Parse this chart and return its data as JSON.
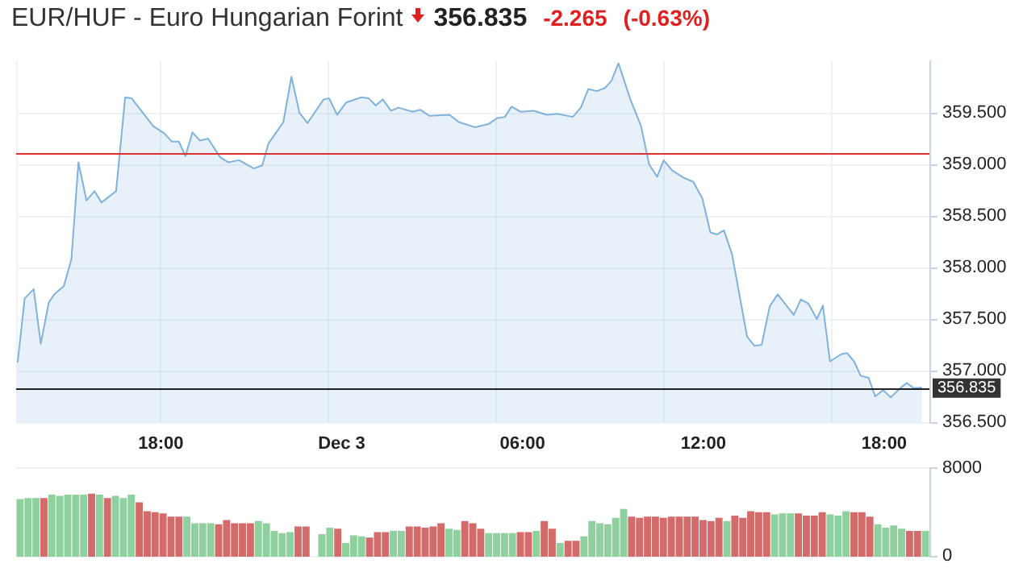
{
  "chart_data": [
    {
      "type": "area",
      "title": "EUR/HUF - Euro Hungarian Forint",
      "annotations": [
        "356.835",
        "-2.265",
        "(-0.63%)"
      ],
      "x": [
        "--12-02T13:15",
        "--12-02T13:29",
        "--12-02T13:47",
        "--12-02T14:01",
        "--12-02T14:17",
        "--12-02T14:28",
        "--12-02T14:47",
        "--12-02T15:02",
        "--12-02T15:16",
        "--12-02T15:32",
        "--12-02T15:48",
        "--12-02T16:02",
        "--12-02T16:31",
        "--12-02T16:49",
        "--12-02T17:02",
        "--12-02T17:45",
        "--12-02T18:07",
        "--12-02T18:22",
        "--12-02T18:36",
        "--12-02T18:49",
        "--12-02T19:03",
        "--12-02T19:18",
        "--12-02T19:34",
        "--12-02T19:58",
        "--12-02T20:14",
        "--12-02T20:36",
        "--12-02T21:05",
        "--12-02T21:22",
        "--12-02T21:34",
        "--12-02T22:04",
        "--12-02T22:20",
        "--12-02T22:36",
        "--12-02T22:52",
        "--12-02T23:24",
        "--12-02T23:35",
        "--12-02T23:51",
        "--12-03T00:09",
        "--12-03T00:39",
        "--12-03T00:54",
        "--12-03T01:08",
        "--12-03T01:22",
        "--12-03T01:38",
        "--12-03T01:53",
        "--12-03T02:22",
        "--12-03T02:36",
        "--12-03T02:55",
        "--12-03T03:35",
        "--12-03T03:53",
        "--12-03T04:25",
        "--12-03T04:52",
        "--12-03T05:10",
        "--12-03T05:25",
        "--12-03T05:38",
        "--12-03T05:56",
        "--12-03T06:22",
        "--12-03T06:49",
        "--12-03T07:10",
        "--12-03T07:40",
        "--12-03T07:56",
        "--12-03T08:11",
        "--12-03T08:28",
        "--12-03T08:44",
        "--12-03T08:57",
        "--12-03T09:11",
        "--12-03T09:34",
        "--12-03T09:56",
        "--12-03T10:12",
        "--12-03T10:28",
        "--12-03T10:41",
        "--12-03T10:58",
        "--12-03T11:21",
        "--12-03T11:40",
        "--12-03T11:58",
        "--12-03T12:14",
        "--12-03T12:27",
        "--12-03T12:41",
        "--12-03T12:57",
        "--12-03T13:27",
        "--12-03T13:42",
        "--12-03T13:56",
        "--12-03T14:12",
        "--12-03T14:28",
        "--12-03T15:00",
        "--12-03T15:14",
        "--12-03T15:29",
        "--12-03T15:46",
        "--12-03T15:58",
        "--12-03T16:12",
        "--12-03T16:35",
        "--12-03T16:46",
        "--12-03T17:00",
        "--12-03T17:13",
        "--12-03T17:29",
        "--12-03T17:42",
        "--12-03T17:58",
        "--12-03T18:13",
        "--12-03T18:32",
        "--12-03T18:45",
        "--12-03T18:59",
        "--12-03T19:15"
      ],
      "series": [
        {
          "color": "#7fb3de",
          "values": [
            357.08,
            357.7,
            357.79,
            357.26,
            357.66,
            357.74,
            357.82,
            358.08,
            359.02,
            358.65,
            358.74,
            358.63,
            358.74,
            359.65,
            359.64,
            359.37,
            359.3,
            359.22,
            359.22,
            359.08,
            359.31,
            359.23,
            359.25,
            359.07,
            359.02,
            359.04,
            358.96,
            358.99,
            359.2,
            359.41,
            359.85,
            359.5,
            359.4,
            359.63,
            359.64,
            359.48,
            359.6,
            359.65,
            359.64,
            359.57,
            359.63,
            359.52,
            359.55,
            359.51,
            359.53,
            359.47,
            359.48,
            359.41,
            359.36,
            359.39,
            359.45,
            359.46,
            359.56,
            359.51,
            359.52,
            359.48,
            359.49,
            359.46,
            359.55,
            359.73,
            359.71,
            359.74,
            359.81,
            359.98,
            359.64,
            359.37,
            359.0,
            358.88,
            359.04,
            358.94,
            358.87,
            358.83,
            358.67,
            358.34,
            358.32,
            358.36,
            358.13,
            357.33,
            357.24,
            357.25,
            357.62,
            357.74,
            357.54,
            357.69,
            357.65,
            357.5,
            357.63,
            357.09,
            357.16,
            357.17,
            357.09,
            356.95,
            356.93,
            356.75,
            356.81,
            356.74,
            356.83,
            356.88,
            356.83,
            356.835
          ]
        }
      ],
      "xlim": [
        "--12-02T13:12",
        "--12-03T19:30"
      ],
      "xticks": [
        {
          "value": "--12-02T18:00",
          "label": "18:00"
        },
        {
          "value": "--12-03T00:00",
          "label": "Dec 3"
        },
        {
          "value": "--12-03T06:00",
          "label": "06:00"
        },
        {
          "value": "--12-03T12:00",
          "label": "12:00"
        },
        {
          "value": "--12-03T18:00",
          "label": "18:00"
        }
      ],
      "ylim": [
        356.5,
        360.0
      ],
      "yticks": [
        {
          "value": 356.5,
          "label": "356.500"
        },
        {
          "value": 357,
          "label": "357.000"
        },
        {
          "value": 357.5,
          "label": "357.500"
        },
        {
          "value": 358,
          "label": "358.000"
        },
        {
          "value": 358.5,
          "label": "358.500"
        },
        {
          "value": 359,
          "label": "359.000"
        },
        {
          "value": 359.5,
          "label": "359.500"
        }
      ],
      "grid": true,
      "marker": "none",
      "ref_lines": [
        {
          "axis": "y",
          "value": 359.1,
          "color": "#e03030"
        },
        {
          "axis": "y",
          "value": 356.835,
          "label": "356.835",
          "color": "#222222"
        }
      ]
    },
    {
      "type": "bar",
      "categories": [
        null,
        null,
        null,
        null,
        null,
        null,
        null,
        null,
        null,
        null,
        null,
        null,
        null,
        null,
        null,
        null,
        null,
        null,
        null,
        null,
        null,
        null,
        null,
        null,
        null,
        null,
        null,
        null,
        null,
        null,
        null,
        null,
        null,
        null,
        null,
        null,
        null,
        null,
        null,
        null,
        null,
        null,
        null,
        null,
        null,
        null,
        null,
        null,
        null,
        null,
        null,
        null,
        null,
        null,
        null,
        null,
        null,
        null,
        null,
        null,
        null,
        null,
        null,
        null,
        null,
        null,
        null,
        null,
        null,
        null,
        null,
        null,
        null,
        null,
        null,
        null,
        null,
        null,
        null,
        null,
        null,
        null,
        null,
        null,
        null,
        null,
        null,
        null,
        null,
        null,
        null,
        null,
        null,
        null,
        null,
        null,
        null,
        null,
        null,
        null,
        null,
        null,
        null,
        null,
        null,
        null,
        null,
        null,
        null,
        null,
        null,
        null,
        null,
        null,
        null
      ],
      "values": [
        5100,
        5200,
        5200,
        5200,
        5500,
        5400,
        5500,
        5500,
        5500,
        5600,
        5500,
        5200,
        5400,
        5200,
        5500,
        4800,
        4000,
        3900,
        3800,
        3500,
        3500,
        3500,
        2900,
        2900,
        2900,
        2800,
        3200,
        2900,
        2900,
        2900,
        3100,
        2900,
        2200,
        2000,
        2100,
        2600,
        2600,
        null,
        1900,
        2500,
        2400,
        1100,
        1800,
        1700,
        1600,
        2100,
        2100,
        2200,
        2200,
        2600,
        2600,
        2500,
        2600,
        2900,
        2400,
        2300,
        3100,
        2900,
        2400,
        2000,
        2000,
        2000,
        2000,
        2100,
        2100,
        2200,
        3100,
        2400,
        1100,
        1300,
        1300,
        1700,
        3100,
        2900,
        2800,
        3400,
        4200,
        3500,
        3400,
        3500,
        3500,
        3400,
        3500,
        3500,
        3500,
        3500,
        3200,
        3100,
        3400,
        3100,
        3600,
        3400,
        4000,
        3900,
        3900,
        3700,
        3800,
        3800,
        3800,
        3600,
        3600,
        3900,
        3700,
        3600,
        4000,
        3900,
        3900,
        3500,
        2800,
        2500,
        2700,
        2400,
        2200,
        2200,
        2200
      ],
      "colors": [
        "#8fd19e",
        "#8fd19e",
        "#8fd19e",
        "#d46b6b",
        "#8fd19e",
        "#8fd19e",
        "#8fd19e",
        "#8fd19e",
        "#8fd19e",
        "#d46b6b",
        "#8fd19e",
        "#d46b6b",
        "#8fd19e",
        "#8fd19e",
        "#8fd19e",
        "#d46b6b",
        "#d46b6b",
        "#d46b6b",
        "#d46b6b",
        "#d46b6b",
        "#d46b6b",
        "#8fd19e",
        "#8fd19e",
        "#8fd19e",
        "#8fd19e",
        "#d46b6b",
        "#d46b6b",
        "#d46b6b",
        "#d46b6b",
        "#d46b6b",
        "#8fd19e",
        "#8fd19e",
        "#8fd19e",
        "#8fd19e",
        "#8fd19e",
        "#d46b6b",
        "#d46b6b",
        "#8fd19e",
        "#8fd19e",
        "#8fd19e",
        "#d46b6b",
        "#8fd19e",
        "#8fd19e",
        "#8fd19e",
        "#d46b6b",
        "#d46b6b",
        "#d46b6b",
        "#8fd19e",
        "#8fd19e",
        "#d46b6b",
        "#d46b6b",
        "#d46b6b",
        "#d46b6b",
        "#d46b6b",
        "#8fd19e",
        "#8fd19e",
        "#d46b6b",
        "#d46b6b",
        "#d46b6b",
        "#8fd19e",
        "#8fd19e",
        "#8fd19e",
        "#8fd19e",
        "#d46b6b",
        "#d46b6b",
        "#8fd19e",
        "#d46b6b",
        "#d46b6b",
        "#8fd19e",
        "#d46b6b",
        "#d46b6b",
        "#8fd19e",
        "#8fd19e",
        "#8fd19e",
        "#8fd19e",
        "#8fd19e",
        "#8fd19e",
        "#d46b6b",
        "#d46b6b",
        "#d46b6b",
        "#d46b6b",
        "#d46b6b",
        "#d46b6b",
        "#d46b6b",
        "#d46b6b",
        "#d46b6b",
        "#d46b6b",
        "#d46b6b",
        "#d46b6b",
        "#8fd19e",
        "#d46b6b",
        "#d46b6b",
        "#d46b6b",
        "#d46b6b",
        "#d46b6b",
        "#8fd19e",
        "#8fd19e",
        "#8fd19e",
        "#d46b6b",
        "#d46b6b",
        "#d46b6b",
        "#d46b6b",
        "#8fd19e",
        "#8fd19e",
        "#8fd19e",
        "#d46b6b",
        "#d46b6b",
        "#d46b6b",
        "#8fd19e",
        "#8fd19e",
        "#8fd19e",
        "#8fd19e",
        "#d46b6b",
        "#d46b6b",
        "#8fd19e"
      ],
      "ylim": [
        0,
        8000
      ],
      "yticks": [
        0,
        8000
      ],
      "tick_labels": "y",
      "grid": "y"
    }
  ]
}
